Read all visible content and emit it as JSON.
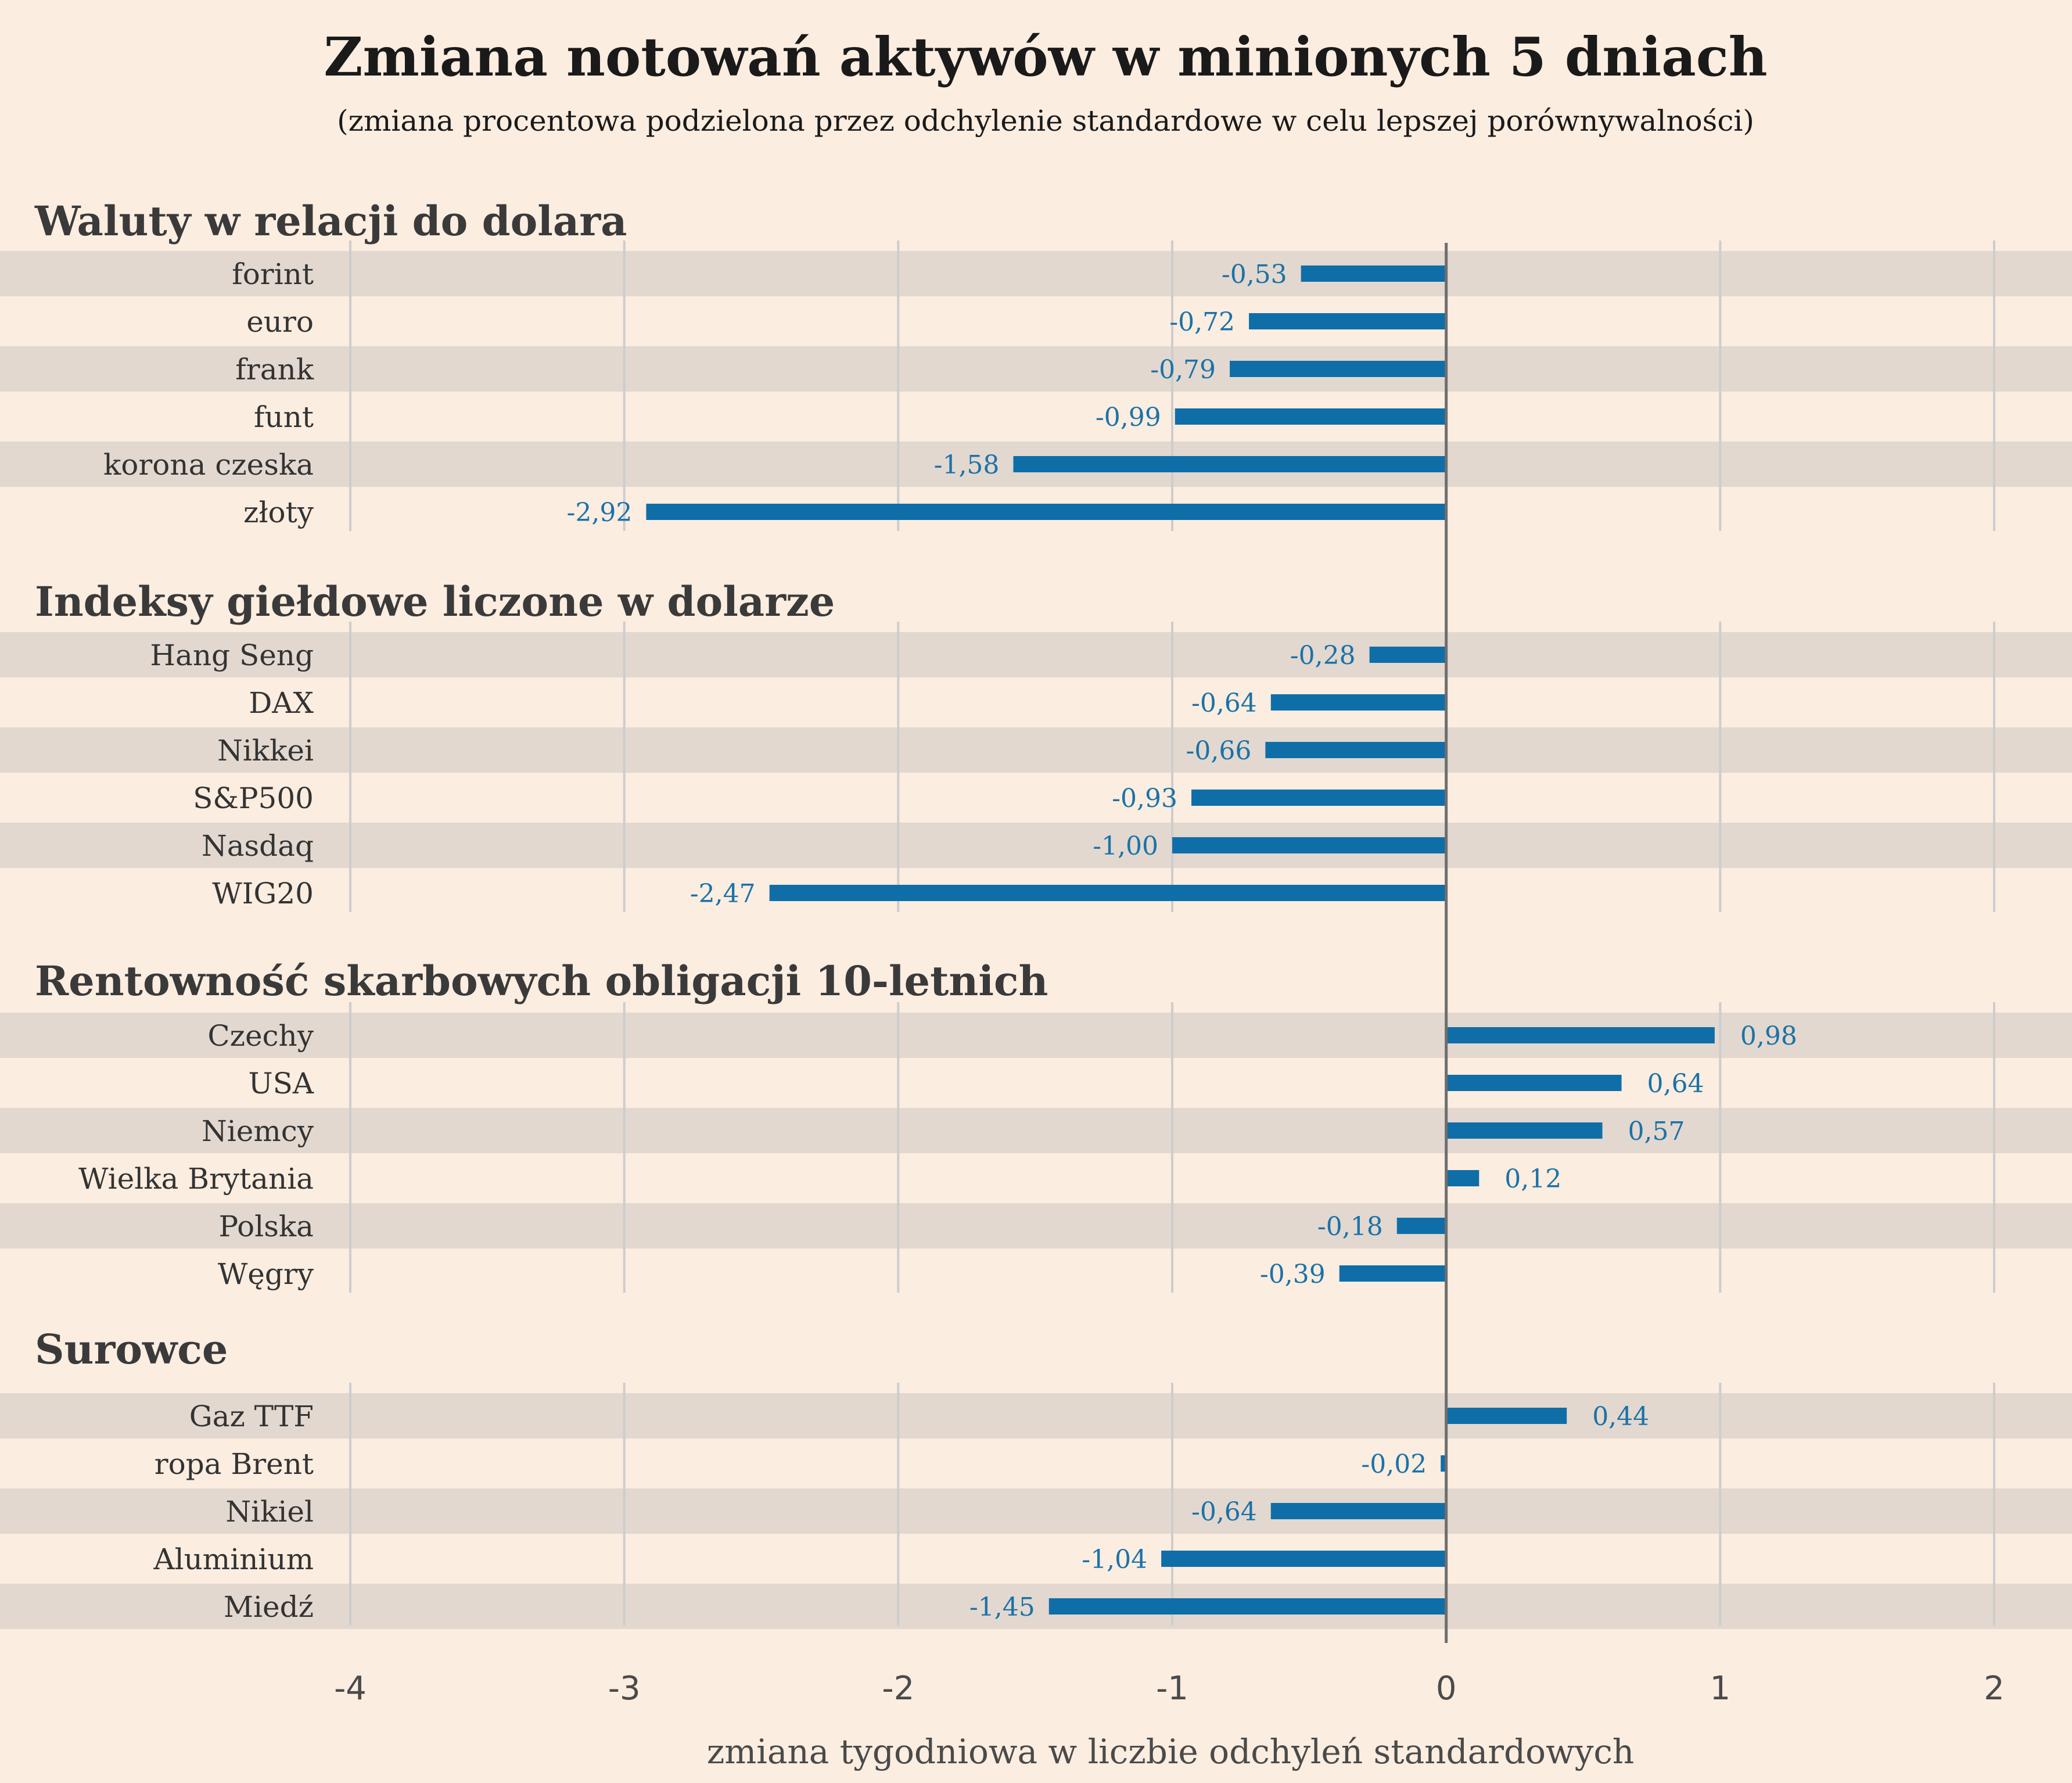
{
  "chart_data": {
    "type": "bar",
    "orientation": "horizontal",
    "title": "Zmiana notowań aktywów w minionych 5 dniach",
    "subtitle": "(zmiana procentowa podzielona przez odchylenie standardowe w celu lepszej porównywalności)",
    "xlabel": "zmiana tygodniowa w liczbie odchyleń standardowych",
    "xlim": [
      -4,
      2
    ],
    "xticks": [
      -4,
      -3,
      -2,
      -1,
      0,
      1,
      2
    ],
    "grid": true,
    "bar_color": "#0f6ea8",
    "stripe_color": "#e2d8cf",
    "background": "#fbede0",
    "groups": [
      {
        "name": "Waluty w relacji do dolara",
        "categories": [
          "forint",
          "euro",
          "frank",
          "funt",
          "korona czeska",
          "złoty"
        ],
        "values": [
          -0.53,
          -0.72,
          -0.79,
          -0.99,
          -1.58,
          -2.92
        ],
        "labels": [
          "-0,53",
          "-0,72",
          "-0,79",
          "-0,99",
          "-1,58",
          "-2,92"
        ]
      },
      {
        "name": "Indeksy giełdowe liczone w dolarze",
        "categories": [
          "Hang Seng",
          "DAX",
          "Nikkei",
          "S&P500",
          "Nasdaq",
          "WIG20"
        ],
        "values": [
          -0.28,
          -0.64,
          -0.66,
          -0.93,
          -1.0,
          -2.47
        ],
        "labels": [
          "-0,28",
          "-0,64",
          "-0,66",
          "-0,93",
          "-1,00",
          "-2,47"
        ]
      },
      {
        "name": "Rentowność skarbowych obligacji 10-letnich",
        "categories": [
          "Czechy",
          "USA",
          "Niemcy",
          "Wielka Brytania",
          "Polska",
          "Węgry"
        ],
        "values": [
          0.98,
          0.64,
          0.57,
          0.12,
          -0.18,
          -0.39
        ],
        "labels": [
          "0,98",
          "0,64",
          "0,57",
          "0,12",
          "-0,18",
          "-0,39"
        ]
      },
      {
        "name": "Surowce",
        "categories": [
          "Gaz TTF",
          "ropa Brent",
          "Nikiel",
          "Aluminium",
          "Miedź"
        ],
        "values": [
          0.44,
          -0.02,
          -0.64,
          -1.04,
          -1.45
        ],
        "labels": [
          "0,44",
          "-0,02",
          "-0,64",
          "-1,04",
          "-1,45"
        ]
      }
    ]
  }
}
